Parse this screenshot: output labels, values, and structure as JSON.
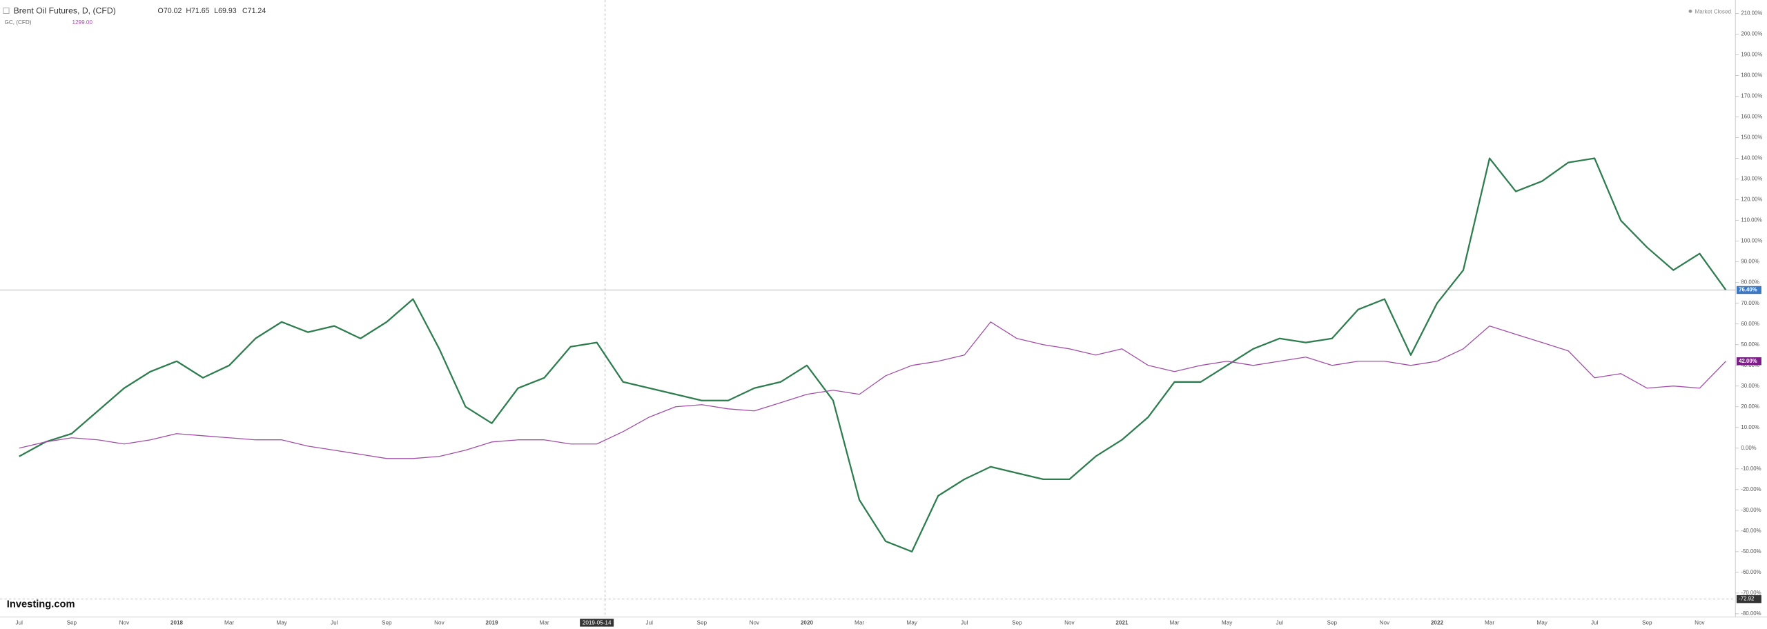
{
  "chart_data": {
    "type": "line",
    "title": "Brent Oil Futures, D, (CFD)",
    "ohlc": [
      "O70.02",
      "H71.65",
      "L69.93",
      "C71.24"
    ],
    "status": "Market Closed",
    "brand": "Investing.com",
    "categories": [
      "Jul",
      null,
      "Sep",
      null,
      "Nov",
      null,
      "2018",
      null,
      "Mar",
      null,
      "May",
      null,
      "Jul",
      null,
      "Sep",
      null,
      "Nov",
      null,
      "2019",
      null,
      "Mar",
      null,
      "2019-05-14",
      null,
      "Jul",
      null,
      "Sep",
      null,
      "Nov",
      null,
      "2020",
      null,
      "Mar",
      null,
      "May",
      null,
      "Jul",
      null,
      "Sep",
      null,
      "Nov",
      null,
      "2021",
      null,
      "Mar",
      null,
      "May",
      null,
      "Jul",
      null,
      "Sep",
      null,
      "Nov",
      null,
      "2022",
      null,
      "Mar",
      null,
      "May",
      null,
      "Jul",
      null,
      "Sep",
      null,
      "Nov",
      null
    ],
    "series": [
      {
        "name": "Brent Oil Futures, D, (CFD)",
        "color": "#2e7d4f",
        "values": [
          -4,
          3,
          7,
          18,
          29,
          37,
          42,
          34,
          40,
          53,
          61,
          56,
          59,
          53,
          61,
          72,
          48,
          20,
          12,
          29,
          34,
          49,
          51,
          32,
          29,
          26,
          23,
          23,
          29,
          32,
          40,
          23,
          -25,
          -45,
          -50,
          -23,
          -15,
          -9,
          -12,
          -15,
          -15,
          -4,
          4,
          15,
          32,
          32,
          40,
          48,
          53,
          51,
          53,
          67,
          72,
          45,
          70,
          86,
          140,
          124,
          129,
          138,
          140,
          110,
          97,
          86,
          94,
          76.4
        ],
        "current_value": {
          "value": 76.4,
          "label": "76.40%"
        },
        "label_color": "#3b78c6"
      },
      {
        "name": "GC, (CFD)",
        "color": "#a24ea8",
        "price": "1299.00",
        "values": [
          0,
          3,
          5,
          4,
          2,
          4,
          7,
          6,
          5,
          4,
          4,
          1,
          -1,
          -3,
          -5,
          -5,
          -4,
          -1,
          3,
          4,
          4,
          2,
          2,
          8,
          15,
          20,
          21,
          19,
          18,
          22,
          26,
          28,
          26,
          35,
          40,
          42,
          45,
          61,
          53,
          50,
          48,
          45,
          48,
          40,
          37,
          40,
          42,
          40,
          42,
          44,
          40,
          42,
          42,
          40,
          42,
          48,
          59,
          55,
          51,
          47,
          34,
          36,
          29,
          30,
          29,
          42
        ],
        "current_value": {
          "value": 42,
          "label": "42.00%"
        },
        "label_color": "#7b1f86"
      }
    ],
    "crosshair": -72.92,
    "ylim": [
      -81.6,
      216.5
    ],
    "yticks": [
      {
        "value": 210,
        "label": "210.00%"
      },
      {
        "value": 200,
        "label": "200.00%"
      },
      {
        "value": 190,
        "label": "190.00%"
      },
      {
        "value": 180,
        "label": "180.00%"
      },
      {
        "value": 170,
        "label": "170.00%"
      },
      {
        "value": 160,
        "label": "160.00%"
      },
      {
        "value": 150,
        "label": "150.00%"
      },
      {
        "value": 140,
        "label": "140.00%"
      },
      {
        "value": 130,
        "label": "130.00%"
      },
      {
        "value": 120,
        "label": "120.00%"
      },
      {
        "value": 110,
        "label": "110.00%"
      },
      {
        "value": 100,
        "label": "100.00%"
      },
      {
        "value": 90,
        "label": "90.00%"
      },
      {
        "value": 80,
        "label": "80.00%"
      },
      {
        "value": 70,
        "label": "70.00%"
      },
      {
        "value": 60,
        "label": "60.00%"
      },
      {
        "value": 50,
        "label": "50.00%"
      },
      {
        "value": 40,
        "label": "40.00%"
      },
      {
        "value": 30,
        "label": "30.00%"
      },
      {
        "value": 20,
        "label": "20.00%"
      },
      {
        "value": 10,
        "label": "10.00%"
      },
      {
        "value": 0,
        "label": "0.00%"
      },
      {
        "value": -10,
        "label": "-10.00%"
      },
      {
        "value": -20,
        "label": "-20.00%"
      },
      {
        "value": -30,
        "label": "-30.00%"
      },
      {
        "value": -40,
        "label": "-40.00%"
      },
      {
        "value": -50,
        "label": "-50.00%"
      },
      {
        "value": -60,
        "label": "-60.00%"
      },
      {
        "value": -70,
        "label": "-70.00%"
      },
      {
        "value": -80,
        "label": "-80.00%"
      }
    ],
    "grid": false
  }
}
